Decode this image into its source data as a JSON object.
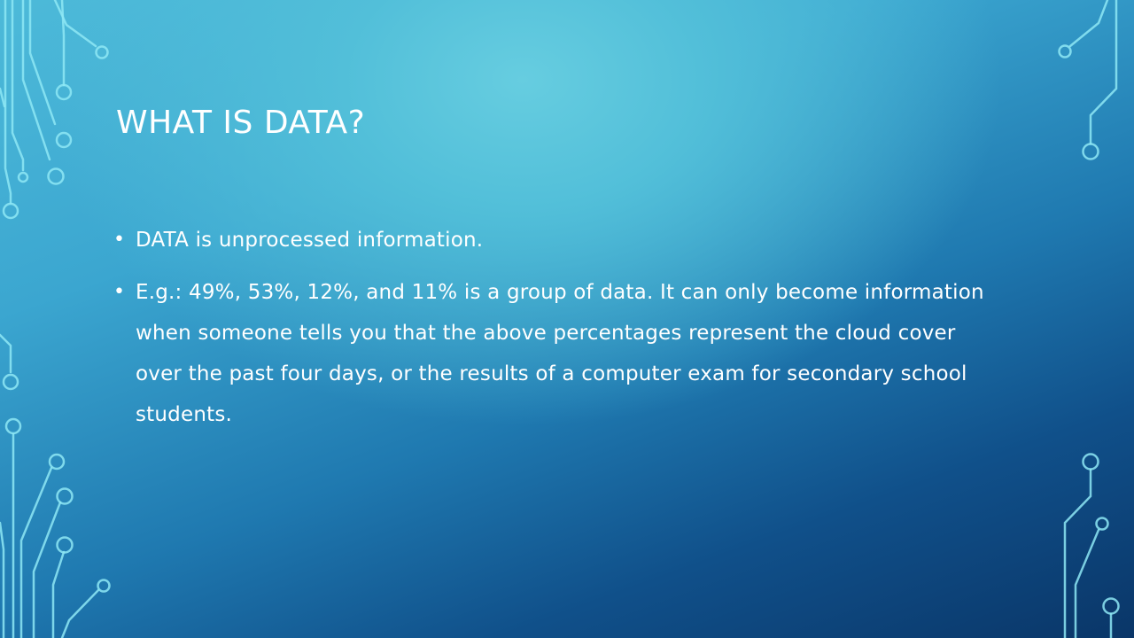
{
  "slide": {
    "title": "WHAT IS DATA?",
    "bullets": [
      "DATA is unprocessed information.",
      "E.g.: 49%, 53%, 12%, and 11% is a group of data. It can only become information when someone tells you that the above percentages represent the cloud cover over the past four days, or the results of a computer exam for secondary school students."
    ],
    "bullet_glyph": "•"
  },
  "theme": {
    "background_light": "#66cde0",
    "background_dark": "#0a3668",
    "circuit_color": "#8ee8f5",
    "text_color": "#ffffff"
  }
}
